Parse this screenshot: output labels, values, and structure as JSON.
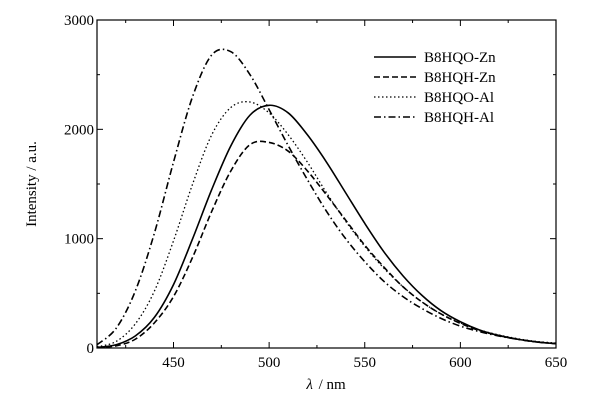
{
  "chart_data": {
    "type": "line",
    "title": "",
    "xlabel_symbol": "λ",
    "xlabel_unit": "/ nm",
    "ylabel": "Intensity / a.u.",
    "xlim": [
      410,
      650
    ],
    "ylim": [
      0,
      3000
    ],
    "x_ticks": [
      450,
      500,
      550,
      600,
      650
    ],
    "y_ticks": [
      0,
      1000,
      2000,
      3000
    ],
    "x_tick_labels": [
      "450",
      "500",
      "550",
      "600",
      "650"
    ],
    "y_tick_labels": [
      "0",
      "1000",
      "2000",
      "3000"
    ],
    "grid": false,
    "legend_position": "top-right",
    "series": [
      {
        "name": "B8HQO-Zn",
        "style": "solid",
        "color": "#000000",
        "x": [
          410,
          420,
          430,
          440,
          450,
          460,
          470,
          480,
          490,
          500,
          510,
          520,
          530,
          540,
          550,
          560,
          570,
          580,
          590,
          600,
          610,
          620,
          630,
          640,
          650
        ],
        "y": [
          5,
          30,
          110,
          280,
          580,
          1000,
          1450,
          1850,
          2130,
          2220,
          2150,
          1950,
          1700,
          1420,
          1140,
          880,
          660,
          480,
          340,
          240,
          165,
          115,
          80,
          55,
          40
        ]
      },
      {
        "name": "B8HQH-Zn",
        "style": "dashed",
        "color": "#000000",
        "x": [
          410,
          420,
          430,
          440,
          450,
          460,
          470,
          480,
          490,
          500,
          510,
          520,
          530,
          540,
          550,
          560,
          570,
          580,
          590,
          600,
          610,
          620,
          630,
          640,
          650
        ],
        "y": [
          5,
          20,
          80,
          230,
          470,
          830,
          1250,
          1620,
          1860,
          1880,
          1800,
          1620,
          1400,
          1170,
          940,
          740,
          560,
          420,
          310,
          225,
          160,
          115,
          80,
          55,
          40
        ]
      },
      {
        "name": "B8HQO-Al",
        "style": "dotted",
        "color": "#000000",
        "x": [
          410,
          420,
          430,
          440,
          450,
          460,
          470,
          480,
          490,
          500,
          510,
          520,
          530,
          540,
          550,
          560,
          570,
          580,
          590,
          600,
          610,
          620,
          630,
          640,
          650
        ],
        "y": [
          10,
          60,
          220,
          520,
          980,
          1500,
          1950,
          2200,
          2250,
          2150,
          1950,
          1700,
          1420,
          1160,
          930,
          730,
          560,
          420,
          310,
          230,
          165,
          120,
          85,
          60,
          45
        ]
      },
      {
        "name": "B8HQH-Al",
        "style": "dashdot",
        "color": "#000000",
        "x": [
          410,
          420,
          430,
          440,
          450,
          460,
          470,
          480,
          490,
          500,
          510,
          520,
          530,
          540,
          550,
          560,
          570,
          580,
          590,
          600,
          610,
          620,
          630,
          640,
          650
        ],
        "y": [
          30,
          180,
          520,
          1050,
          1700,
          2300,
          2680,
          2710,
          2500,
          2180,
          1850,
          1540,
          1250,
          1000,
          790,
          610,
          470,
          360,
          270,
          200,
          150,
          110,
          80,
          55,
          40
        ]
      }
    ]
  }
}
